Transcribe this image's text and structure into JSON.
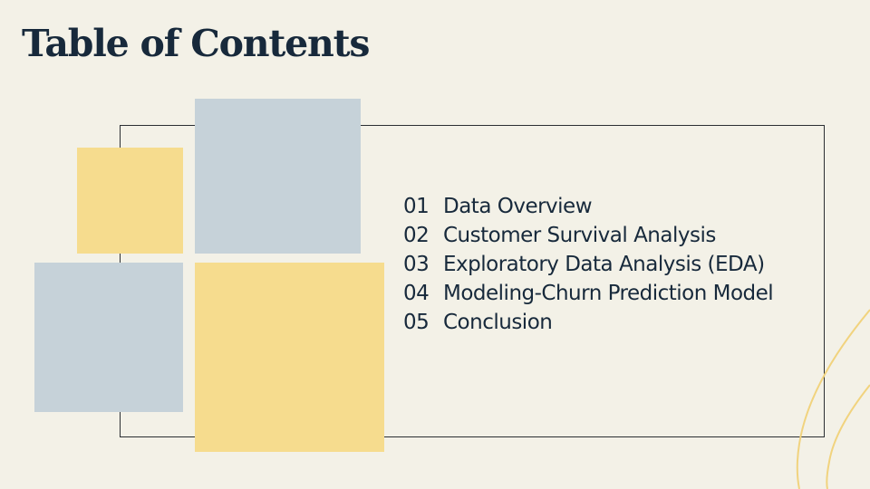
{
  "title": "Table of Contents",
  "toc": {
    "items": [
      {
        "number": "01",
        "label": "Data Overview"
      },
      {
        "number": "02",
        "label": "Customer Survival Analysis"
      },
      {
        "number": "03",
        "label": "Exploratory Data Analysis (EDA)"
      },
      {
        "number": "04",
        "label": "Modeling-Churn Prediction Model"
      },
      {
        "number": "05",
        "label": "Conclusion"
      }
    ]
  },
  "colors": {
    "background": "#f3f1e7",
    "title": "#17293b",
    "yellow_block": "#f6dc8e",
    "blue_block": "#c6d2d9",
    "deco_line": "#f1d37e"
  }
}
